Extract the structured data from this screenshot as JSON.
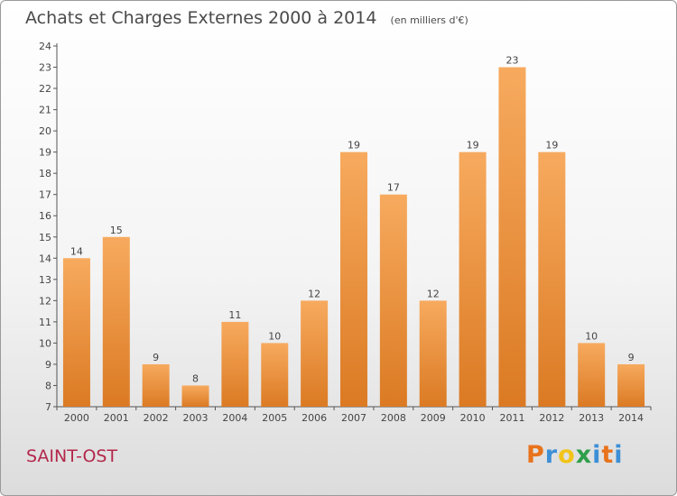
{
  "header": {
    "title": "Achats et Charges Externes 2000 à 2014",
    "subtitle": "(en milliers d'€)"
  },
  "footer": {
    "town": "SAINT-OST",
    "logo_text": "Proxiti",
    "logo_colors": [
      "#e8731c",
      "#3d8fd6",
      "#f2c418",
      "#2f9e4a",
      "#3d8fd6",
      "#e8731c",
      "#3d8fd6"
    ]
  },
  "colors": {
    "bar_light": "#f7aa5e",
    "bar_dark": "#db7a23",
    "axis": "#555555",
    "text": "#444444"
  },
  "chart_data": {
    "type": "bar",
    "categories": [
      "2000",
      "2001",
      "2002",
      "2003",
      "2004",
      "2005",
      "2006",
      "2007",
      "2008",
      "2009",
      "2010",
      "2011",
      "2012",
      "2013",
      "2014"
    ],
    "values": [
      14,
      15,
      9,
      8,
      11,
      10,
      12,
      19,
      17,
      12,
      19,
      23,
      19,
      10,
      9
    ],
    "ylim": [
      7,
      24
    ],
    "yticks": [
      7,
      8,
      9,
      10,
      11,
      12,
      13,
      14,
      15,
      16,
      17,
      18,
      19,
      20,
      21,
      22,
      23,
      24
    ],
    "grid": false,
    "legend": "none"
  }
}
